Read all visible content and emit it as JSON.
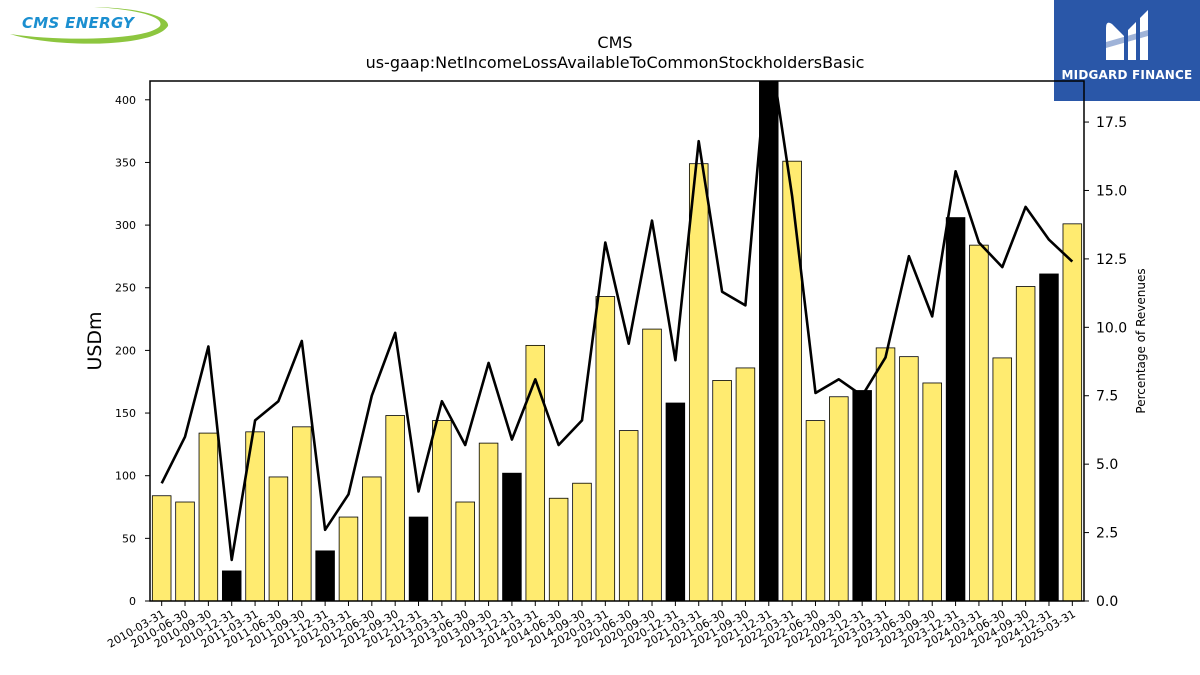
{
  "branding": {
    "left_logo_text": "CMS ENERGY",
    "right_logo_text": "MIDGARD FINANCE"
  },
  "colors": {
    "bar_normal": "#ffeb70",
    "bar_highlight": "#000000",
    "line": "#000000",
    "logo_right_bg": "#2a57a8",
    "logo_left_blue": "#1b8fd0",
    "logo_left_green": "#8dc63f"
  },
  "chart_data": {
    "type": "bar",
    "title": "CMS",
    "subtitle": "us-gaap:NetIncomeLossAvailableToCommonStockholdersBasic",
    "ylabel": "USDm",
    "y2label": "Percentage of Revenues",
    "ylim": [
      0,
      415
    ],
    "y2lim": [
      0,
      19
    ],
    "yticks": [
      0,
      50,
      100,
      150,
      200,
      250,
      300,
      350,
      400
    ],
    "y2ticks": [
      "0.0",
      "2.5",
      "5.0",
      "7.5",
      "10.0",
      "12.5",
      "15.0",
      "17.5"
    ],
    "categories": [
      "2010-03-31",
      "2010-06-30",
      "2010-09-30",
      "2010-12-31",
      "2011-03-31",
      "2011-06-30",
      "2011-09-30",
      "2011-12-31",
      "2012-03-31",
      "2012-06-30",
      "2012-09-30",
      "2012-12-31",
      "2013-03-31",
      "2013-06-30",
      "2013-09-30",
      "2013-12-31",
      "2014-03-31",
      "2014-06-30",
      "2014-09-30",
      "2020-03-31",
      "2020-06-30",
      "2020-09-30",
      "2020-12-31",
      "2021-03-31",
      "2021-06-30",
      "2021-09-30",
      "2021-12-31",
      "2022-03-31",
      "2022-06-30",
      "2022-09-30",
      "2022-12-31",
      "2023-03-31",
      "2023-06-30",
      "2023-09-30",
      "2023-12-31",
      "2024-03-31",
      "2024-06-30",
      "2024-09-30",
      "2024-12-31",
      "2025-03-31"
    ],
    "values": [
      84,
      79,
      134,
      24,
      135,
      99,
      139,
      40,
      67,
      99,
      148,
      67,
      144,
      79,
      126,
      102,
      204,
      82,
      94,
      243,
      136,
      217,
      158,
      349,
      176,
      186,
      415,
      351,
      144,
      163,
      168,
      202,
      195,
      174,
      306,
      284,
      194,
      251,
      261,
      301
    ],
    "highlighted": [
      false,
      false,
      false,
      true,
      false,
      false,
      false,
      true,
      false,
      false,
      false,
      true,
      false,
      false,
      false,
      true,
      false,
      false,
      false,
      false,
      false,
      false,
      true,
      false,
      false,
      false,
      true,
      false,
      false,
      false,
      true,
      false,
      false,
      false,
      true,
      false,
      false,
      false,
      true,
      false
    ],
    "line_series": {
      "name": "Percentage of Revenues",
      "values": [
        4.3,
        6.0,
        9.3,
        1.5,
        6.6,
        7.3,
        9.5,
        2.6,
        3.9,
        7.5,
        9.8,
        4.0,
        7.3,
        5.7,
        8.7,
        5.9,
        8.1,
        5.7,
        6.6,
        13.1,
        9.4,
        13.9,
        8.8,
        16.8,
        11.3,
        10.8,
        20.5,
        14.8,
        7.6,
        8.1,
        7.5,
        8.9,
        12.6,
        10.4,
        15.7,
        13.1,
        12.2,
        14.4,
        13.2,
        12.4
      ]
    }
  }
}
